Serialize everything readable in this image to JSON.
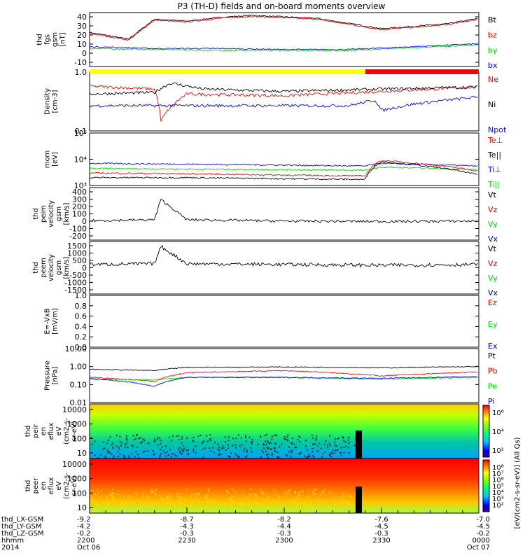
{
  "title": "P3 (TH-D) fields and on-board moments overview",
  "colors": {
    "black": "#000000",
    "red": "#ff0000",
    "green": "#00dd00",
    "blue": "#0000ff",
    "flag_yellow": "#ffff00",
    "flag_red": "#ff0000"
  },
  "panels": [
    {
      "id": "fgs",
      "ylabel": [
        "thd",
        "fgs",
        "gsm",
        "[nT]"
      ],
      "ticks": [
        "40",
        "30",
        "20",
        "10",
        "0",
        "-10"
      ],
      "scale": "linear",
      "ylim": [
        -15,
        42
      ],
      "legend": [
        {
          "label": "Bt",
          "color": "#000000"
        },
        {
          "label": "bz",
          "color": "#ff0000"
        },
        {
          "label": "by",
          "color": "#00dd00"
        },
        {
          "label": "bx",
          "color": "#0000ff"
        }
      ]
    },
    {
      "id": "density",
      "ylabel": [
        "Density",
        "[cm-3]"
      ],
      "ticks": [
        "1.0",
        "0.1"
      ],
      "scale": "log",
      "ylim": [
        0.1,
        1.1
      ],
      "legend": [
        {
          "label": "Ne",
          "color": "#ff0000"
        },
        {
          "label": "Ni",
          "color": "#000000"
        },
        {
          "label": "Npot",
          "color": "#0000ff"
        }
      ]
    },
    {
      "id": "temperature",
      "ylabel": [
        "mom",
        "[eV]"
      ],
      "ticks": [
        "10⁵",
        "10⁴",
        "10³"
      ],
      "scale": "log",
      "ylim": [
        1000,
        100000
      ],
      "legend": [
        {
          "label": "Te⊥",
          "color": "#ff0000"
        },
        {
          "label": "Te||",
          "color": "#000000"
        },
        {
          "label": "Ti⊥",
          "color": "#0000ff"
        },
        {
          "label": "Ti||",
          "color": "#00dd00"
        }
      ]
    },
    {
      "id": "peim_velocity",
      "ylabel": [
        "thd",
        "peim",
        "velocity",
        "gsm",
        "[km/s]"
      ],
      "ticks": [
        "400",
        "300",
        "200",
        "100",
        "0",
        "-100",
        "-200"
      ],
      "scale": "linear",
      "ylim": [
        -200,
        420
      ],
      "legend": [
        {
          "label": "Vt",
          "color": "#000000"
        },
        {
          "label": "Vz",
          "color": "#ff0000"
        },
        {
          "label": "Vy",
          "color": "#00dd00"
        },
        {
          "label": "Vx",
          "color": "#0000ff"
        }
      ]
    },
    {
      "id": "peem_velocity",
      "ylabel": [
        "thd",
        "peem",
        "velocity",
        "gsm",
        "[km/s]"
      ],
      "ticks": [
        "1500",
        "1000",
        "500",
        "0",
        "-500",
        "-1000",
        "-1500"
      ],
      "scale": "linear",
      "ylim": [
        -1600,
        1600
      ],
      "legend": [
        {
          "label": "Vt",
          "color": "#000000"
        },
        {
          "label": "Vz",
          "color": "#ff0000"
        },
        {
          "label": "Vy",
          "color": "#00dd00"
        },
        {
          "label": "Vx",
          "color": "#0000ff"
        }
      ]
    },
    {
      "id": "efield",
      "ylabel": [
        "E=-VxB",
        "[mV/m]"
      ],
      "ticks": [
        "1.0",
        "0.8",
        "0.6",
        "0.4",
        "0.2",
        "0.0"
      ],
      "scale": "linear",
      "ylim": [
        0,
        1
      ],
      "legend": [
        {
          "label": "Ez",
          "color": "#ff0000"
        },
        {
          "label": "Ey",
          "color": "#00dd00"
        },
        {
          "label": "Ex",
          "color": "#0000ff"
        }
      ]
    },
    {
      "id": "pressure",
      "ylabel": [
        "Pressure",
        "[nPa]"
      ],
      "ticks": [
        "10.00",
        "1.00",
        "0.10",
        "0.01"
      ],
      "scale": "log",
      "ylim": [
        0.01,
        10
      ],
      "legend": [
        {
          "label": "Pt",
          "color": "#000000"
        },
        {
          "label": "Pb",
          "color": "#ff0000"
        },
        {
          "label": "Pe",
          "color": "#00dd00"
        },
        {
          "label": "Pi",
          "color": "#0000ff"
        }
      ]
    }
  ],
  "spectrograms": [
    {
      "id": "peir",
      "ylabel": [
        "thd",
        "peir",
        "en",
        "eflux",
        "eV",
        "(cm2-s-",
        "sr-eV)"
      ],
      "ticks": [
        "10000",
        "1000",
        "100",
        "10"
      ]
    },
    {
      "id": "peer",
      "ylabel": [
        "thd",
        "peer",
        "en",
        "eflux",
        "eV",
        "(cm2-s-",
        "sr-eV)"
      ],
      "ticks": [
        "10000",
        "1000",
        "100",
        "10"
      ]
    }
  ],
  "colorbars": [
    {
      "ticks": [
        "10⁶",
        "10⁴",
        "10²"
      ],
      "label": "[eV/(cm2-s-sr-eV)] (All Qs)"
    },
    {
      "ticks": [
        "10⁸",
        "10⁷",
        "10⁶",
        "10⁵",
        "10⁴",
        "10³",
        "10²"
      ],
      "label": "[eV/(cm2-s-sr-eV)] (All Qs)"
    }
  ],
  "colorbar_big_label": "[eV/(cm2-s-sr-eV)] (All Qs)",
  "xaxis": {
    "row_labels": [
      "thd_LX-GSM",
      "thd_LY-GSM",
      "thd_LZ-GSM",
      "hhmm",
      "2014"
    ],
    "columns": [
      {
        "lx": "-9.2",
        "ly": "-4.2",
        "lz": "-0.2",
        "hhmm": "2200",
        "date": "Oct 06"
      },
      {
        "lx": "-8.7",
        "ly": "-4.3",
        "lz": "-0.3",
        "hhmm": "2230",
        "date": ""
      },
      {
        "lx": "-8.2",
        "ly": "-4.4",
        "lz": "-0.3",
        "hhmm": "2300",
        "date": ""
      },
      {
        "lx": "-7.6",
        "ly": "-4.5",
        "lz": "-0.3",
        "hhmm": "2330",
        "date": ""
      },
      {
        "lx": "-7.0",
        "ly": "-4.5",
        "lz": "-0.2",
        "hhmm": "0000",
        "date": "Oct 07"
      }
    ]
  },
  "chart_data": {
    "type": "line",
    "title": "P3 (TH-D) fields and on-board moments overview",
    "x_range": [
      "2014-10-06 22:00",
      "2014-10-07 00:00"
    ],
    "x_ticks": [
      "2200",
      "2230",
      "2300",
      "2330",
      "0000"
    ],
    "series": [
      {
        "panel": "fgs",
        "name": "Bt",
        "x_min": [
          0,
          12,
          20,
          30,
          40,
          50,
          70,
          90,
          110,
          120
        ],
        "y": [
          21,
          14,
          35,
          33,
          37,
          39,
          36,
          25,
          30,
          36
        ]
      },
      {
        "panel": "fgs",
        "name": "bz",
        "x_min": [
          0,
          12,
          20,
          30,
          40,
          50,
          70,
          90,
          110,
          120
        ],
        "y": [
          20,
          13,
          34,
          32,
          36,
          38,
          35,
          24,
          29,
          35
        ]
      },
      {
        "panel": "fgs",
        "name": "by",
        "x_min": [
          0,
          20,
          40,
          60,
          80,
          100,
          120
        ],
        "y": [
          4,
          3,
          2,
          2,
          2,
          5,
          8
        ]
      },
      {
        "panel": "fgs",
        "name": "bx",
        "x_min": [
          0,
          20,
          40,
          60,
          80,
          100,
          120
        ],
        "y": [
          6,
          4,
          4,
          3,
          3,
          6,
          9
        ]
      },
      {
        "panel": "density",
        "name": "Ne",
        "x_min": [
          0,
          20,
          22,
          30,
          60,
          90,
          120
        ],
        "y": [
          0.62,
          0.55,
          0.15,
          0.45,
          0.42,
          0.5,
          0.6
        ]
      },
      {
        "panel": "density",
        "name": "Ni",
        "x_min": [
          0,
          20,
          25,
          35,
          60,
          90,
          120
        ],
        "y": [
          0.45,
          0.48,
          0.7,
          0.55,
          0.5,
          0.55,
          0.6
        ]
      },
      {
        "panel": "density",
        "name": "Npot",
        "x_min": [
          80,
          88,
          90,
          100,
          120
        ],
        "y": [
          0.28,
          0.35,
          0.23,
          0.3,
          0.4
        ]
      },
      {
        "panel": "temperature",
        "name": "Ti⊥",
        "x_min": [
          0,
          30,
          60,
          85,
          90,
          120
        ],
        "y": [
          7000,
          6500,
          6000,
          5500,
          7000,
          5500
        ]
      },
      {
        "panel": "temperature",
        "name": "Ti||",
        "x_min": [
          0,
          30,
          60,
          85,
          90,
          120
        ],
        "y": [
          4500,
          4200,
          4000,
          3800,
          5000,
          4000
        ]
      },
      {
        "panel": "temperature",
        "name": "Te⊥",
        "x_min": [
          0,
          30,
          60,
          85,
          90,
          120
        ],
        "y": [
          3000,
          2800,
          2500,
          2300,
          9000,
          3500
        ]
      },
      {
        "panel": "temperature",
        "name": "Te||",
        "x_min": [
          0,
          30,
          60,
          85,
          90,
          120
        ],
        "y": [
          2000,
          2000,
          1800,
          1700,
          8000,
          2500
        ]
      },
      {
        "panel": "peim_velocity",
        "name": "Vt",
        "x_min": [
          0,
          20,
          22,
          30,
          60,
          90,
          120
        ],
        "y": [
          30,
          40,
          280,
          40,
          25,
          20,
          25
        ]
      },
      {
        "panel": "peem_velocity",
        "name": "Vt",
        "x_min": [
          0,
          20,
          22,
          30,
          60,
          90,
          120
        ],
        "y": [
          200,
          250,
          1300,
          250,
          200,
          150,
          200
        ]
      },
      {
        "panel": "pressure",
        "name": "Pt",
        "x_min": [
          0,
          20,
          30,
          60,
          90,
          120
        ],
        "y": [
          0.7,
          0.6,
          0.9,
          0.95,
          0.85,
          1.0
        ]
      },
      {
        "panel": "pressure",
        "name": "Pb",
        "x_min": [
          0,
          20,
          30,
          60,
          90,
          120
        ],
        "y": [
          0.25,
          0.15,
          0.45,
          0.6,
          0.3,
          0.5
        ]
      },
      {
        "panel": "pressure",
        "name": "Pe",
        "x_min": [
          0,
          20,
          30,
          60,
          90,
          120
        ],
        "y": [
          0.2,
          0.18,
          0.25,
          0.25,
          0.2,
          0.25
        ]
      },
      {
        "panel": "pressure",
        "name": "Pi",
        "x_min": [
          0,
          20,
          30,
          60,
          90,
          120
        ],
        "y": [
          0.22,
          0.08,
          0.25,
          0.25,
          0.22,
          0.28
        ]
      }
    ],
    "mode_flag": [
      {
        "from_min": 0,
        "to_min": 85,
        "color": "yellow"
      },
      {
        "from_min": 85,
        "to_min": 120,
        "color": "red"
      }
    ]
  }
}
